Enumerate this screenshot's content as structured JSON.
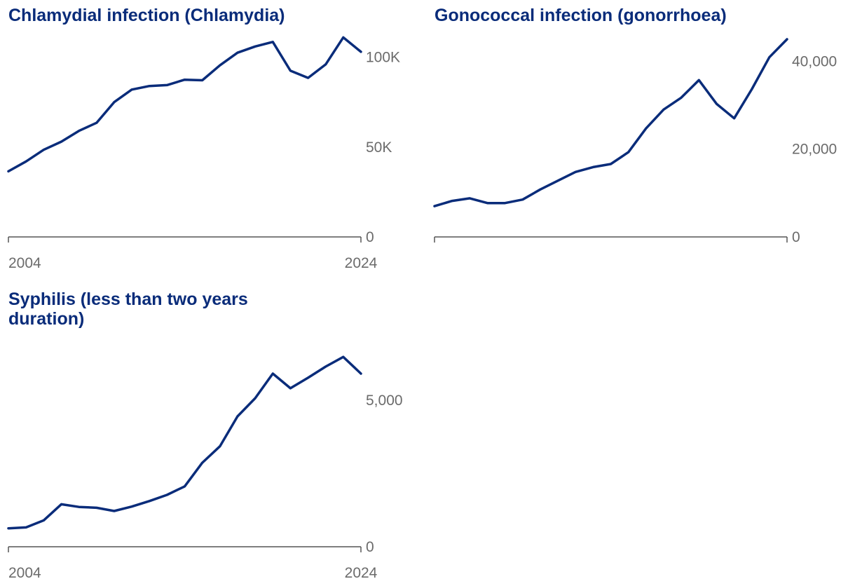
{
  "colors": {
    "line": "#0a2c7a",
    "axis": "#555555",
    "tick_text": "#6b6b6b",
    "title": "#0a2c7a"
  },
  "chart_data": [
    {
      "type": "line",
      "title": "Chlamydial infection (Chlamydia)",
      "x": [
        2004,
        2005,
        2006,
        2007,
        2008,
        2009,
        2010,
        2011,
        2012,
        2013,
        2014,
        2015,
        2016,
        2017,
        2018,
        2019,
        2020,
        2021,
        2022,
        2023,
        2024
      ],
      "values": [
        36500,
        42000,
        48500,
        53000,
        59000,
        63500,
        75000,
        82000,
        84000,
        84500,
        87500,
        87200,
        95500,
        102500,
        106000,
        108500,
        92500,
        88500,
        96000,
        111000,
        103000
      ],
      "ylim": [
        0,
        110000
      ],
      "yticks": [
        {
          "value": 0,
          "label": "0"
        },
        {
          "value": 50000,
          "label": "50K"
        },
        {
          "value": 100000,
          "label": "100K"
        }
      ],
      "xticks": [
        {
          "value": 2004,
          "label": "2004"
        },
        {
          "value": 2024,
          "label": "2024"
        }
      ]
    },
    {
      "type": "line",
      "title": "Gonococcal infection (gonorrhoea)",
      "x": [
        2004,
        2005,
        2006,
        2007,
        2008,
        2009,
        2010,
        2011,
        2012,
        2013,
        2014,
        2015,
        2016,
        2017,
        2018,
        2019,
        2020,
        2021,
        2022,
        2023,
        2024
      ],
      "values": [
        7000,
        8200,
        8800,
        7700,
        7700,
        8500,
        10800,
        12800,
        14800,
        15900,
        16600,
        19300,
        24700,
        29000,
        31700,
        35700,
        30300,
        27000,
        33600,
        40900,
        45000
      ],
      "ylim": [
        0,
        45000
      ],
      "yticks": [
        {
          "value": 0,
          "label": "0"
        },
        {
          "value": 20000,
          "label": "20,000"
        },
        {
          "value": 40000,
          "label": "40,000"
        }
      ],
      "xticks": []
    },
    {
      "type": "line",
      "title": "Syphilis (less than two years duration)",
      "x": [
        2004,
        2005,
        2006,
        2007,
        2008,
        2009,
        2010,
        2011,
        2012,
        2013,
        2014,
        2015,
        2016,
        2017,
        2018,
        2019,
        2020,
        2021,
        2022,
        2023,
        2024
      ],
      "values": [
        630,
        660,
        900,
        1450,
        1360,
        1330,
        1220,
        1370,
        1560,
        1770,
        2060,
        2870,
        3430,
        4450,
        5070,
        5910,
        5410,
        5770,
        6150,
        6480,
        5910
      ],
      "ylim": [
        0,
        6700
      ],
      "yticks": [
        {
          "value": 0,
          "label": "0"
        },
        {
          "value": 5000,
          "label": "5,000"
        }
      ],
      "xticks": [
        {
          "value": 2004,
          "label": "2004"
        },
        {
          "value": 2024,
          "label": "2024"
        }
      ]
    }
  ]
}
